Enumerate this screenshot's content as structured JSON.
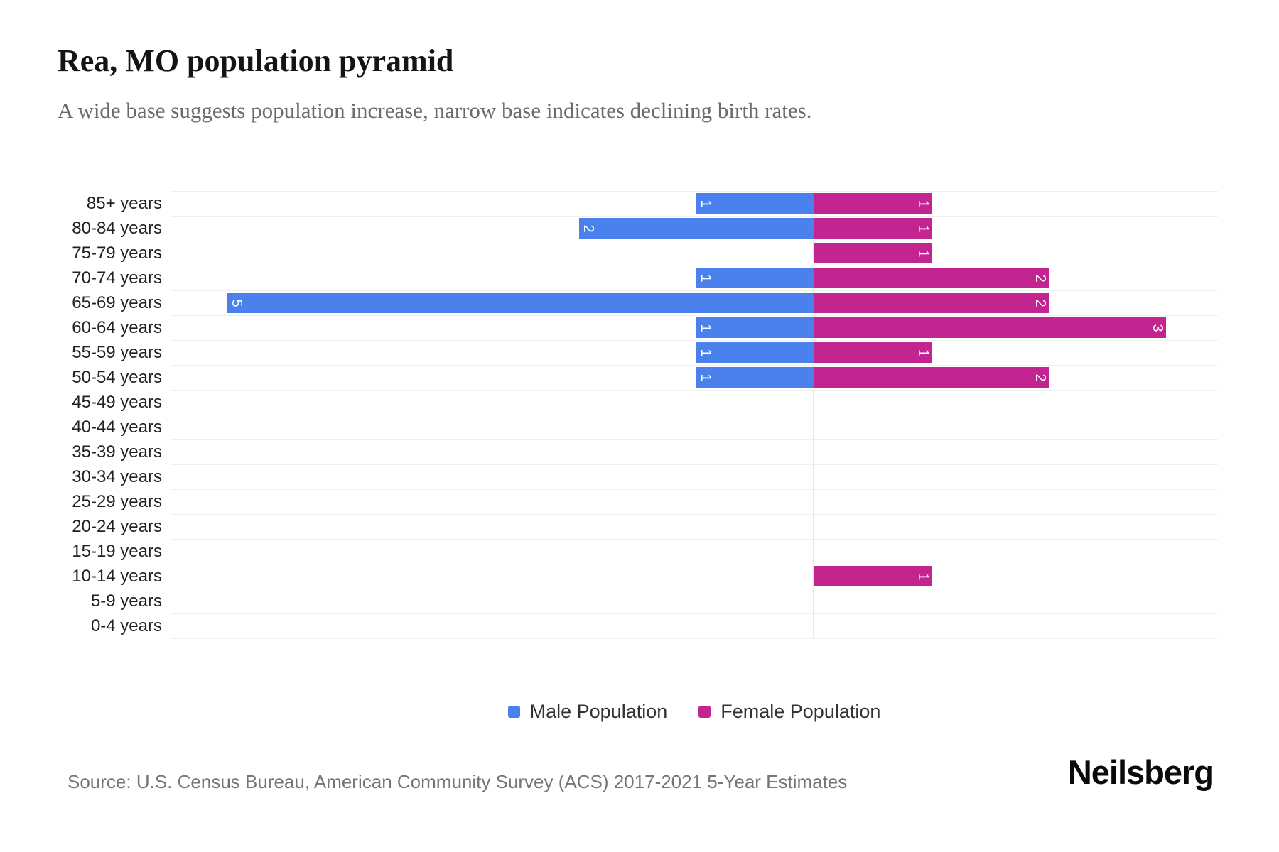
{
  "header": {
    "title": "Rea, MO population pyramid",
    "subtitle": "A wide base suggests population increase, narrow base indicates declining birth rates."
  },
  "chart_data": {
    "type": "bar",
    "variant": "population-pyramid-diverging-horizontal",
    "categories": [
      "85+ years",
      "80-84 years",
      "75-79 years",
      "70-74 years",
      "65-69 years",
      "60-64 years",
      "55-59 years",
      "50-54 years",
      "45-49 years",
      "40-44 years",
      "35-39 years",
      "30-34 years",
      "25-29 years",
      "20-24 years",
      "15-19 years",
      "10-14 years",
      "5-9 years",
      "0-4 years"
    ],
    "series": [
      {
        "name": "Male Population",
        "side": "left",
        "color": "#4a81ec",
        "values": [
          1,
          2,
          0,
          1,
          5,
          1,
          1,
          1,
          0,
          0,
          0,
          0,
          0,
          0,
          0,
          0,
          0,
          0
        ]
      },
      {
        "name": "Female Population",
        "side": "right",
        "color": "#c2258f",
        "values": [
          1,
          1,
          1,
          2,
          2,
          3,
          1,
          2,
          0,
          0,
          0,
          0,
          0,
          0,
          0,
          1,
          0,
          0
        ]
      }
    ],
    "value_labels": "shown inside bar at outer end, white, rotated 90deg",
    "axis": {
      "left_max": 5,
      "right_max": 3,
      "center_value": 0
    },
    "grid": "horizontal lines at category boundaries, light gray; vertical center axis line",
    "legend_position": "bottom-center"
  },
  "legend": {
    "items": [
      {
        "label": "Male Population",
        "color": "#4a81ec"
      },
      {
        "label": "Female Population",
        "color": "#c2258f"
      }
    ]
  },
  "footer": {
    "source": "Source: U.S. Census Bureau, American Community Survey (ACS) 2017-2021 5-Year Estimates",
    "brand": "Neilsberg"
  }
}
